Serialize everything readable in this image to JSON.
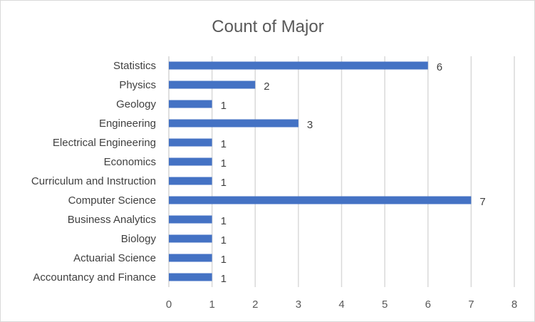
{
  "chart_data": {
    "type": "bar",
    "orientation": "horizontal",
    "title": "Count of Major",
    "xlabel": "",
    "ylabel": "",
    "categories": [
      "Statistics",
      "Physics",
      "Geology",
      "Engineering",
      "Electrical Engineering",
      "Economics",
      "Curriculum and Instruction",
      "Computer Science",
      "Business Analytics",
      "Biology",
      "Actuarial Science",
      "Accountancy and Finance"
    ],
    "values": [
      6,
      2,
      1,
      3,
      1,
      1,
      1,
      7,
      1,
      1,
      1,
      1
    ],
    "xlim": [
      0,
      8
    ],
    "xticks": [
      0,
      1,
      2,
      3,
      4,
      5,
      6,
      7,
      8
    ],
    "grid": true,
    "legend": "none",
    "bar_color": "#4472C4",
    "data_labels": true
  }
}
